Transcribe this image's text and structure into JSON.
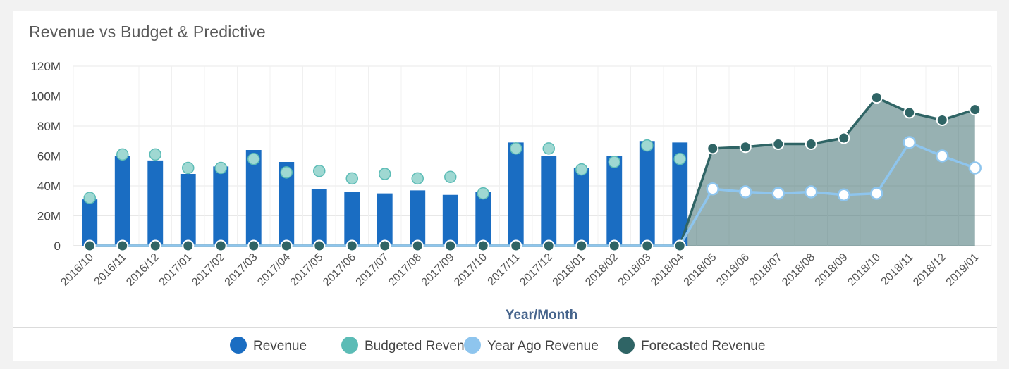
{
  "chart_data": {
    "type": "bar",
    "title": "Revenue vs Budget & Predictive",
    "xlabel": "Year/Month",
    "ylabel": "",
    "ylim": [
      0,
      120
    ],
    "y_ticks": [
      "0",
      "20M",
      "40M",
      "60M",
      "80M",
      "100M",
      "120M"
    ],
    "y_tick_values": [
      0,
      20,
      40,
      60,
      80,
      100,
      120
    ],
    "categories": [
      "2016/10",
      "2016/11",
      "2016/12",
      "2017/01",
      "2017/02",
      "2017/03",
      "2017/04",
      "2017/05",
      "2017/06",
      "2017/07",
      "2017/08",
      "2017/09",
      "2017/10",
      "2017/11",
      "2017/12",
      "2018/01",
      "2018/02",
      "2018/03",
      "2018/04",
      "2018/05",
      "2018/06",
      "2018/07",
      "2018/08",
      "2018/09",
      "2018/10",
      "2018/11",
      "2018/12",
      "2019/01"
    ],
    "series": [
      {
        "name": "Revenue",
        "type": "bar",
        "color": "#1a6dc2",
        "values": [
          31,
          60,
          57,
          48,
          53,
          64,
          56,
          38,
          36,
          35,
          37,
          34,
          36,
          69,
          60,
          52,
          60,
          70,
          69,
          null,
          null,
          null,
          null,
          null,
          null,
          null,
          null,
          null
        ]
      },
      {
        "name": "Budgeted Revenue",
        "type": "scatter",
        "color": "#5cbcb6",
        "values": [
          32,
          61,
          61,
          52,
          52,
          58,
          49,
          50,
          45,
          48,
          45,
          46,
          35,
          65,
          65,
          51,
          56,
          67,
          58,
          null,
          null,
          null,
          null,
          null,
          null,
          null,
          null,
          null
        ]
      },
      {
        "name": "Year Ago Revenue",
        "type": "line",
        "color": "#8ec5ee",
        "values": [
          0,
          0,
          0,
          0,
          0,
          0,
          0,
          0,
          0,
          0,
          0,
          0,
          0,
          0,
          0,
          0,
          0,
          0,
          0,
          38,
          36,
          35,
          36,
          34,
          35,
          69,
          60,
          52
        ]
      },
      {
        "name": "Forecasted Revenue",
        "type": "area",
        "color": "#2f6465",
        "values": [
          0,
          0,
          0,
          0,
          0,
          0,
          0,
          0,
          0,
          0,
          0,
          0,
          0,
          0,
          0,
          0,
          0,
          0,
          0,
          65,
          66,
          68,
          68,
          72,
          99,
          89,
          84,
          91
        ]
      }
    ],
    "grid": true,
    "legend_position": "bottom"
  }
}
